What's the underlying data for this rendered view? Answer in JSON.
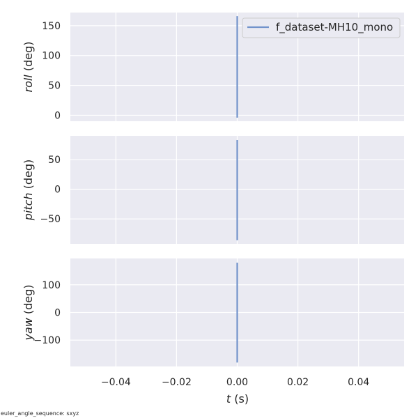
{
  "chart_data": [
    {
      "type": "line",
      "ylabel": {
        "var": "roll",
        "unit": " (deg)"
      },
      "xlim": [
        -0.055,
        0.055
      ],
      "ylim": [
        -10,
        172
      ],
      "yticks": [
        0,
        50,
        100,
        150
      ],
      "x": [
        0,
        0
      ],
      "series": [
        {
          "name": "f_dataset-MH10_mono",
          "x": [
            0,
            0
          ],
          "values": [
            -4,
            166
          ],
          "color": "#7293cb"
        }
      ],
      "legend": {
        "position": "top-right",
        "entries": [
          "f_dataset-MH10_mono"
        ]
      },
      "grid": true
    },
    {
      "type": "line",
      "ylabel": {
        "var": "pitch",
        "unit": " (deg)"
      },
      "xlim": [
        -0.055,
        0.055
      ],
      "ylim": [
        -92,
        90
      ],
      "yticks": [
        -50,
        0,
        50
      ],
      "series": [
        {
          "name": "f_dataset-MH10_mono",
          "x": [
            0,
            0
          ],
          "values": [
            -86,
            83
          ],
          "color": "#7293cb"
        }
      ],
      "grid": true
    },
    {
      "type": "line",
      "ylabel": {
        "var": "yaw",
        "unit": " (deg)"
      },
      "xlim": [
        -0.055,
        0.055
      ],
      "ylim": [
        -195,
        195
      ],
      "yticks": [
        -100,
        0,
        100
      ],
      "series": [
        {
          "name": "f_dataset-MH10_mono",
          "x": [
            0,
            0
          ],
          "values": [
            -181,
            180
          ],
          "color": "#7293cb"
        }
      ],
      "grid": true
    }
  ],
  "xticks": [
    "−0.04",
    "−0.02",
    "0.00",
    "0.02",
    "0.04"
  ],
  "xtick_values": [
    -0.04,
    -0.02,
    0.0,
    0.02,
    0.04
  ],
  "xlabel": {
    "var": "t",
    "unit": " (s)"
  },
  "footnote": "euler_angle_sequence: sxyz",
  "colors": {
    "panel_bg": "#eaeaf2",
    "grid": "#ffffff",
    "line": "#7293cb",
    "text": "#262626"
  }
}
